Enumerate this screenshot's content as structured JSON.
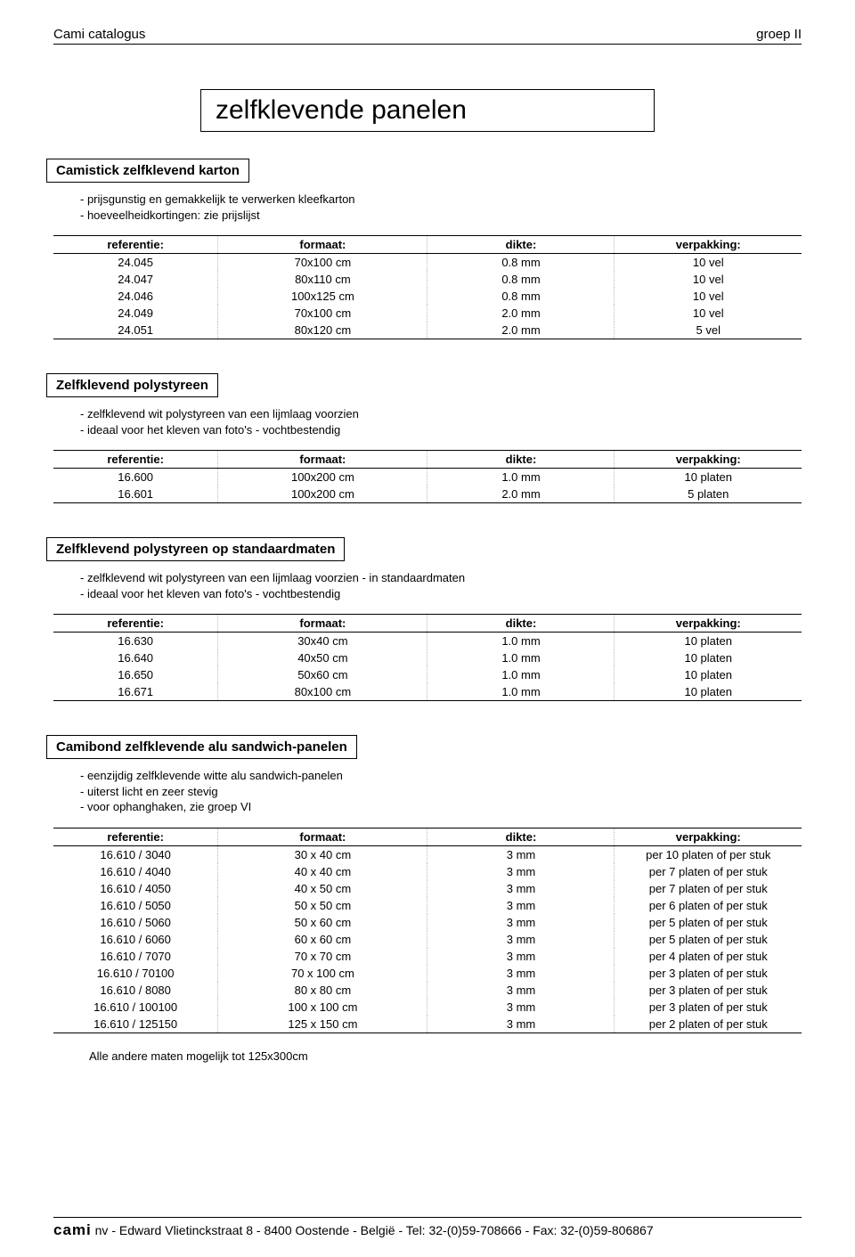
{
  "header": {
    "left": "Cami catalogus",
    "right": "groep II"
  },
  "main_title": "zelfklevende panelen",
  "table_headers": [
    "referentie:",
    "formaat:",
    "dikte:",
    "verpakking:"
  ],
  "sections": [
    {
      "title": "Camistick zelfklevend karton",
      "desc_lines": [
        "- prijsgunstig en gemakkelijk te verwerken kleefkarton",
        "- hoeveelheidkortingen: zie prijslijst"
      ],
      "rows": [
        [
          "24.045",
          "70x100 cm",
          "0.8 mm",
          "10 vel"
        ],
        [
          "24.047",
          "80x110 cm",
          "0.8 mm",
          "10 vel"
        ],
        [
          "24.046",
          "100x125 cm",
          "0.8 mm",
          "10 vel"
        ],
        [
          "24.049",
          "70x100 cm",
          "2.0 mm",
          "10 vel"
        ],
        [
          "24.051",
          "80x120 cm",
          "2.0 mm",
          "5 vel"
        ]
      ]
    },
    {
      "title": "Zelfklevend polystyreen",
      "desc_lines": [
        "- zelfklevend wit polystyreen van een lijmlaag voorzien",
        "- ideaal voor het kleven van foto's - vochtbestendig"
      ],
      "rows": [
        [
          "16.600",
          "100x200 cm",
          "1.0 mm",
          "10 platen"
        ],
        [
          "16.601",
          "100x200 cm",
          "2.0 mm",
          "5 platen"
        ]
      ]
    },
    {
      "title": "Zelfklevend polystyreen op standaardmaten",
      "desc_lines": [
        "- zelfklevend wit polystyreen van een lijmlaag voorzien - in standaardmaten",
        "- ideaal voor het kleven van foto's - vochtbestendig"
      ],
      "rows": [
        [
          "16.630",
          "30x40 cm",
          "1.0 mm",
          "10 platen"
        ],
        [
          "16.640",
          "40x50 cm",
          "1.0 mm",
          "10 platen"
        ],
        [
          "16.650",
          "50x60 cm",
          "1.0 mm",
          "10 platen"
        ],
        [
          "16.671",
          "80x100 cm",
          "1.0 mm",
          "10 platen"
        ]
      ]
    },
    {
      "title": "Camibond zelfklevende alu sandwich-panelen",
      "desc_lines": [
        "- eenzijdig zelfklevende witte alu sandwich-panelen",
        "- uiterst licht en zeer stevig",
        "- voor ophanghaken, zie groep VI"
      ],
      "rows": [
        [
          "16.610 / 3040",
          "30 x 40 cm",
          "3 mm",
          "per 10 platen of per stuk"
        ],
        [
          "16.610 / 4040",
          "40 x 40 cm",
          "3 mm",
          "per 7 platen of per stuk"
        ],
        [
          "16.610 / 4050",
          "40 x 50 cm",
          "3 mm",
          "per 7 platen of per stuk"
        ],
        [
          "16.610 / 5050",
          "50 x 50 cm",
          "3 mm",
          "per 6 platen of per stuk"
        ],
        [
          "16.610 / 5060",
          "50 x 60 cm",
          "3 mm",
          "per 5 platen of per stuk"
        ],
        [
          "16.610 / 6060",
          "60 x 60 cm",
          "3 mm",
          "per 5 platen of per stuk"
        ],
        [
          "16.610 / 7070",
          "70 x 70 cm",
          "3 mm",
          "per 4 platen of per stuk"
        ],
        [
          "16.610 / 70100",
          "70 x 100 cm",
          "3 mm",
          "per 3 platen of per stuk"
        ],
        [
          "16.610 / 8080",
          "80 x 80 cm",
          "3 mm",
          "per 3 platen of per stuk"
        ],
        [
          "16.610 / 100100",
          "100 x 100 cm",
          "3 mm",
          "per 3 platen of per stuk"
        ],
        [
          "16.610 / 125150",
          "125 x 150 cm",
          "3 mm",
          "per 2 platen of per stuk"
        ]
      ],
      "footnote": "Alle andere maten mogelijk tot 125x300cm"
    }
  ],
  "footer": {
    "brand": "cami",
    "rest": " nv - Edward Vlietinckstraat 8 - 8400 Oostende - België - Tel: 32-(0)59-708666 - Fax: 32-(0)59-806867"
  }
}
